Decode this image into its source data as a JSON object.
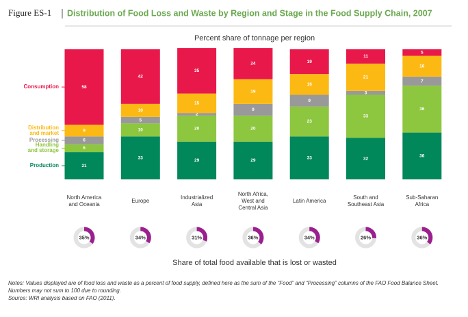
{
  "chart_data": {
    "type": "stacked_bar",
    "figure_label": "Figure ES-1",
    "title": "Distribution of Food Loss and Waste by Region and Stage in the Food Supply Chain, 2007",
    "subtitle": "Percent share of tonnage per region",
    "categories": [
      "North America\nand Oceania",
      "Europe",
      "Industrialized\nAsia",
      "North Africa,\nWest and\nCentral Asia",
      "Latin America",
      "South and\nSoutheast Asia",
      "Sub-Saharan\nAfrica"
    ],
    "ylim": [
      0,
      100
    ],
    "series": [
      {
        "name": "Production",
        "color": "#00875a",
        "values": [
          21,
          33,
          29,
          29,
          33,
          32,
          36
        ]
      },
      {
        "name": "Handling\nand storage",
        "color": "#8dc63f",
        "values": [
          6,
          10,
          20,
          20,
          23,
          33,
          36
        ]
      },
      {
        "name": "Processing",
        "color": "#999999",
        "values": [
          6,
          5,
          2,
          9,
          9,
          3,
          7
        ]
      },
      {
        "name": "Distribution\nand market",
        "color": "#fdb913",
        "values": [
          9,
          10,
          15,
          19,
          16,
          21,
          16
        ]
      },
      {
        "name": "Consumption",
        "color": "#e8194a",
        "values": [
          58,
          42,
          35,
          24,
          19,
          11,
          5
        ]
      }
    ],
    "lost_share": {
      "title": "Share of total food available that is lost or wasted",
      "color": "#9b1f8e",
      "values": [
        35,
        34,
        31,
        36,
        34,
        26,
        36
      ],
      "value_labels": [
        "35%",
        "34%",
        "31%",
        "36%",
        "34%",
        "26%",
        "36%"
      ]
    },
    "notes_label": "Notes:",
    "notes": "Values displayed are of food loss and waste as a percent of food supply, defined here as the sum of the “Food” and “Processing” columns of the FAO Food Balance Sheet. Numbers may not sum to 100 due to rounding.",
    "source_label": "Source:",
    "source": "WRI analysis based on FAO (2011)."
  }
}
